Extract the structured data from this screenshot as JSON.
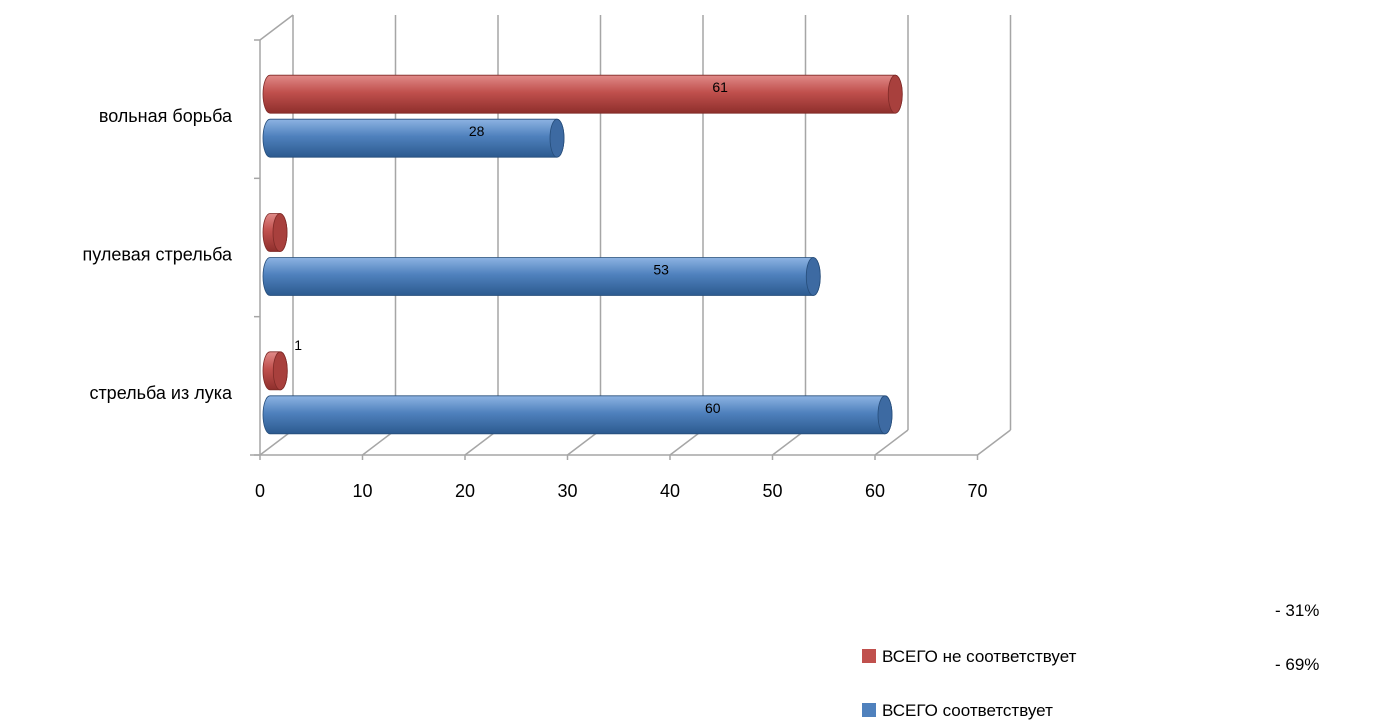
{
  "chart_data": {
    "type": "bar",
    "orientation": "horizontal",
    "categories": [
      "вольная борьба",
      "пулевая стрельба",
      "стрельба из лука"
    ],
    "series": [
      {
        "name": "ВСЕГО не соответствует",
        "color": "#c0504d",
        "values": [
          61,
          0,
          1
        ],
        "value_labels": [
          "61",
          "",
          "1"
        ]
      },
      {
        "name": "ВСЕГО соответствует",
        "color": "#4f81bd",
        "values": [
          28,
          53,
          60
        ],
        "value_labels": [
          "28",
          "53",
          "60"
        ]
      }
    ],
    "xticks": [
      "0",
      "10",
      "20",
      "30",
      "40",
      "50",
      "60",
      "70"
    ],
    "xlim": [
      0,
      70
    ],
    "grid": true,
    "legend_position": "bottom-right",
    "legend_notes": [
      "- 31%",
      "- 69%"
    ]
  }
}
